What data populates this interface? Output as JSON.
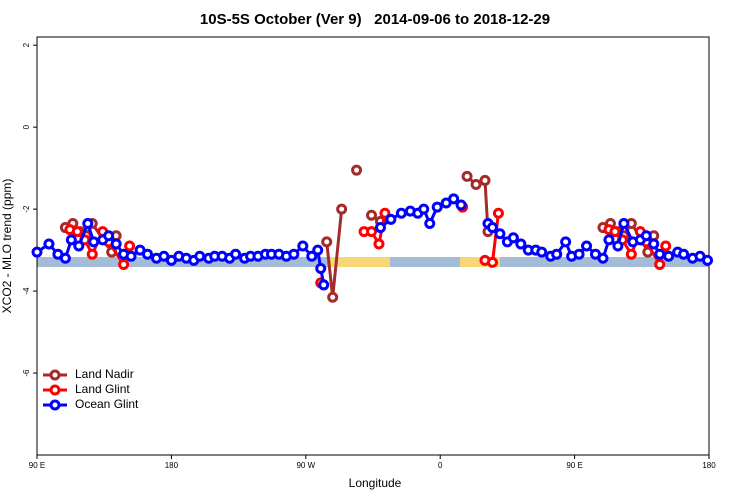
{
  "chart_data": {
    "type": "line",
    "title": "10S-5S October (Ver 9)   2014-09-06 to 2018-12-29",
    "x_label": "Longitude",
    "y_label": "XCO2 - MLO trend (ppm)",
    "xlim": [
      90,
      540
    ],
    "xticks": [
      {
        "value": 90,
        "label": "90 E"
      },
      180,
      {
        "value": 270,
        "label": "90 W"
      },
      {
        "value": 360,
        "label": "0"
      },
      {
        "value": 450,
        "label": "90 E"
      },
      {
        "value": 540,
        "label": "180"
      }
    ],
    "ylim": [
      -8,
      2.2
    ],
    "yticks": [
      2,
      0,
      -2,
      -4,
      -6
    ],
    "legend": "bottom-left",
    "series": [
      {
        "name": "Land Nadir",
        "color": "#a52a2a",
        "x": [
          109,
          114,
          119,
          123,
          127,
          140,
          143,
          null,
          284,
          288,
          294,
          null,
          304,
          null,
          314,
          320,
          null,
          378,
          384,
          390,
          392,
          null,
          469,
          474,
          479,
          483,
          488,
          495,
          499,
          503
        ],
        "values": [
          -2.45,
          -2.35,
          -2.55,
          -2.65,
          -2.35,
          -3.05,
          -2.65,
          null,
          -2.8,
          -4.15,
          -2.0,
          null,
          -1.05,
          null,
          -2.15,
          -2.3,
          null,
          -1.2,
          -1.4,
          -1.3,
          -2.55,
          null,
          -2.45,
          -2.35,
          -2.55,
          -2.65,
          -2.35,
          -2.75,
          -3.05,
          -2.65
        ]
      },
      {
        "name": "Land Glint",
        "color": "#ff0000",
        "x": [
          112,
          117,
          122,
          127,
          134,
          138,
          148,
          152,
          null,
          280,
          null,
          309,
          314,
          319,
          323,
          null,
          375,
          null,
          390,
          395,
          399,
          null,
          473,
          477,
          482,
          488,
          494,
          498,
          507,
          511
        ],
        "values": [
          -2.5,
          -2.55,
          -2.75,
          -3.1,
          -2.55,
          -2.8,
          -3.35,
          -2.9,
          null,
          -3.8,
          null,
          -2.55,
          -2.55,
          -2.85,
          -2.1,
          null,
          -1.95,
          null,
          -3.25,
          -3.3,
          -2.1,
          null,
          -2.5,
          -2.55,
          -2.75,
          -3.1,
          -2.55,
          -2.8,
          -3.35,
          -2.9
        ]
      },
      {
        "name": "Ocean Glint",
        "color": "#0000ff",
        "x": [
          90,
          98,
          104,
          109,
          113,
          118,
          124,
          128,
          134,
          138,
          143,
          148,
          153,
          159,
          164,
          170,
          175,
          180,
          185,
          190,
          195,
          199,
          205,
          209,
          214,
          219,
          223,
          229,
          233,
          238,
          243,
          247,
          252,
          257,
          262,
          268,
          274,
          278,
          280,
          282,
          null,
          320,
          327,
          334,
          340,
          345,
          349,
          353,
          358,
          364,
          369,
          374,
          null,
          392,
          395,
          400,
          405,
          409,
          414,
          419,
          424,
          428,
          434,
          438,
          444,
          448,
          453,
          458,
          464,
          469,
          473,
          479,
          483,
          489,
          494,
          498,
          503,
          507,
          513,
          519,
          523,
          529,
          534,
          539
        ],
        "values": [
          -3.05,
          -2.85,
          -3.1,
          -3.2,
          -2.75,
          -2.9,
          -2.35,
          -2.8,
          -2.75,
          -2.65,
          -2.85,
          -3.1,
          -3.15,
          -3.0,
          -3.1,
          -3.2,
          -3.15,
          -3.25,
          -3.15,
          -3.2,
          -3.25,
          -3.15,
          -3.2,
          -3.15,
          -3.15,
          -3.2,
          -3.1,
          -3.2,
          -3.15,
          -3.15,
          -3.1,
          -3.1,
          -3.1,
          -3.15,
          -3.1,
          -2.9,
          -3.15,
          -3.0,
          -3.45,
          -3.85,
          null,
          -2.45,
          -2.25,
          -2.1,
          -2.05,
          -2.1,
          -2.0,
          -2.35,
          -1.95,
          -1.85,
          -1.75,
          -1.9,
          null,
          -2.35,
          -2.45,
          -2.6,
          -2.8,
          -2.7,
          -2.85,
          -3.0,
          -3.0,
          -3.05,
          -3.15,
          -3.1,
          -2.8,
          -3.15,
          -3.1,
          -2.9,
          -3.1,
          -3.2,
          -2.75,
          -2.9,
          -2.35,
          -2.8,
          -2.75,
          -2.65,
          -2.85,
          -3.1,
          -3.15,
          -3.05,
          -3.1,
          -3.2,
          -3.15,
          -3.25
        ]
      }
    ]
  }
}
